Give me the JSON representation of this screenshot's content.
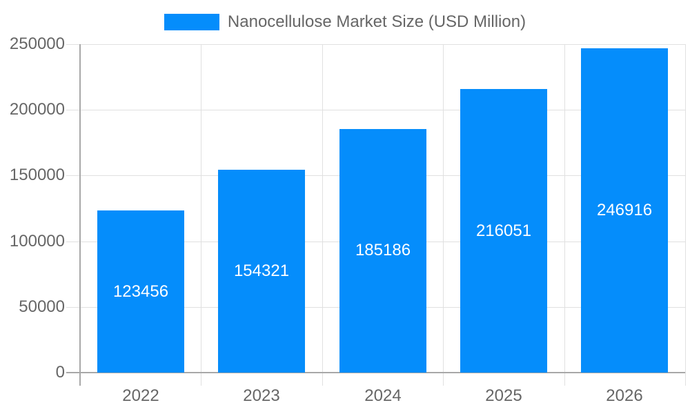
{
  "chart_data": {
    "type": "bar",
    "title": "",
    "legend": [
      {
        "label": "Nanocellulose Market Size (USD Million)",
        "color": "#058dfb"
      }
    ],
    "legend_position": "top",
    "categories": [
      "2022",
      "2023",
      "2024",
      "2025",
      "2026"
    ],
    "series": [
      {
        "name": "Nanocellulose Market Size (USD Million)",
        "values": [
          123456,
          154321,
          185186,
          216051,
          246916
        ],
        "color": "#058dfb"
      }
    ],
    "data_labels": [
      "123456",
      "154321",
      "185186",
      "216051",
      "246916"
    ],
    "xlabel": "",
    "ylabel": "",
    "ylim": [
      0,
      250000
    ],
    "yticks": [
      "0",
      "50000",
      "100000",
      "150000",
      "200000",
      "250000"
    ],
    "grid": true
  }
}
